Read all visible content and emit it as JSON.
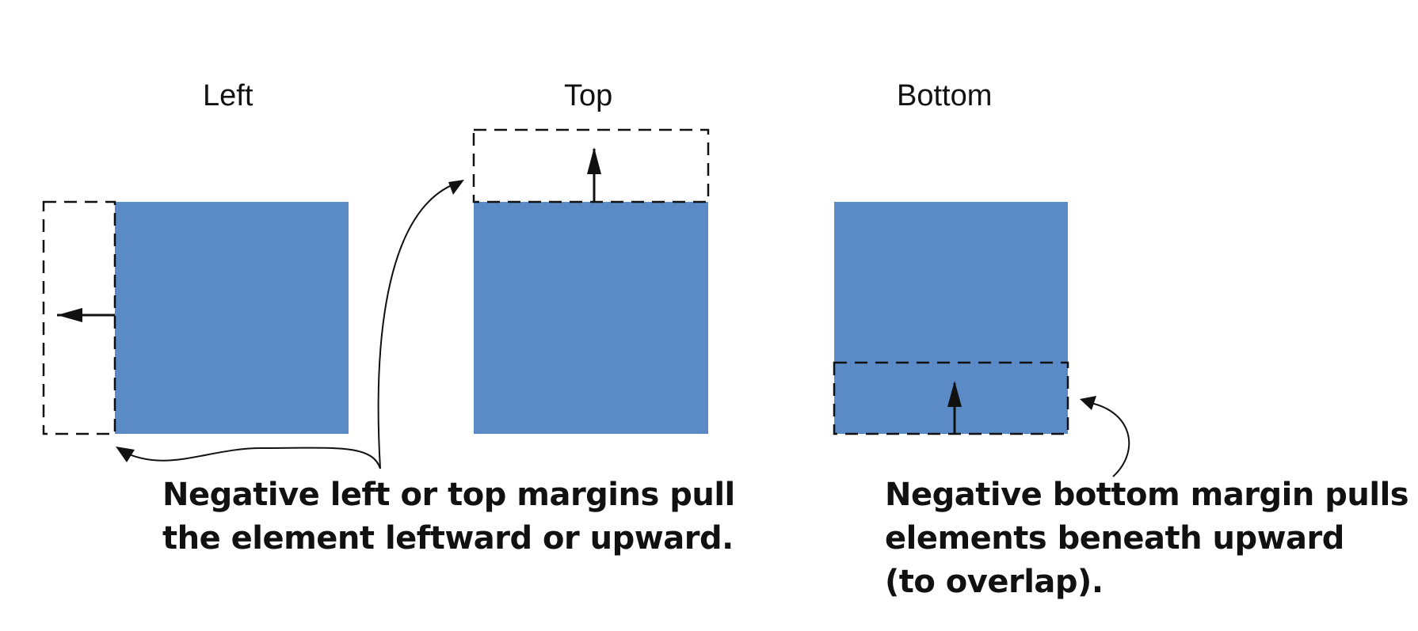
{
  "panels": [
    {
      "key": "left",
      "title": "Left"
    },
    {
      "key": "top",
      "title": "Top"
    },
    {
      "key": "bottom",
      "title": "Bottom"
    }
  ],
  "callouts": {
    "left_top": {
      "lines": [
        "Negative left or top margins pull",
        "the element leftward or upward."
      ]
    },
    "bottom": {
      "lines": [
        "Negative bottom margin pulls",
        "elements beneath upward",
        "(to overlap)."
      ]
    }
  },
  "colors": {
    "box_fill": "#5b8bc7",
    "stroke": "#111111",
    "background": "#ffffff"
  }
}
